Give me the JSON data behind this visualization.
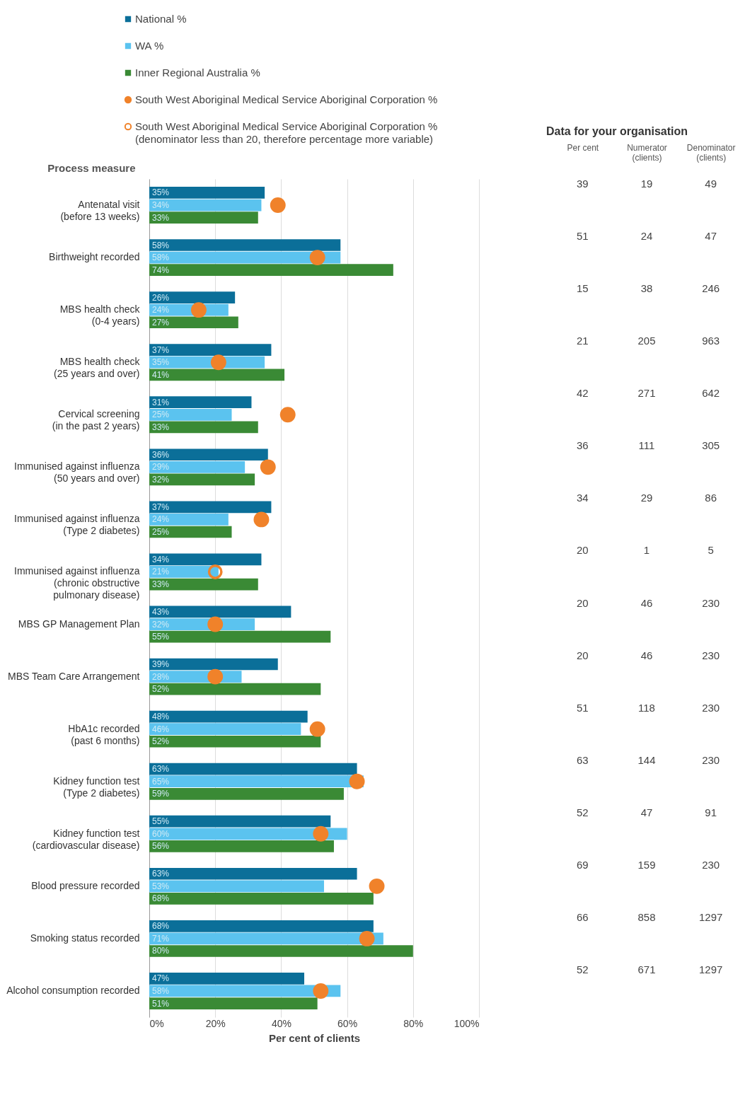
{
  "chart_data": [
    {
      "type": "bar",
      "orientation": "horizontal",
      "ylabel": "Process measure",
      "xlabel": "Per cent of clients",
      "legend": "top",
      "grid": "x",
      "categories": [
        "Antenatal visit\n(before 13 weeks)",
        "Birthweight recorded",
        "MBS health check\n(0-4 years)",
        "MBS health check\n(25 years and over)",
        "Cervical screening\n(in the past 2 years)",
        "Immunised against influenza\n(50 years and over)",
        "Immunised against influenza\n(Type 2 diabetes)",
        "Immunised against influenza\n(chronic obstructive\npulmonary disease)",
        "MBS GP Management Plan",
        "MBS Team Care Arrangement",
        "HbA1c recorded\n(past 6 months)",
        "Kidney function test\n(Type 2 diabetes)",
        "Kidney function test\n(cardiovascular disease)",
        "Blood pressure recorded",
        "Smoking status recorded",
        "Alcohol consumption recorded"
      ],
      "xlim": [
        0,
        100
      ],
      "xticks": [
        {
          "value": 0,
          "label": "0%"
        },
        {
          "value": 20,
          "label": "20%"
        },
        {
          "value": 40,
          "label": "40%"
        },
        {
          "value": 60,
          "label": "60%"
        },
        {
          "value": 80,
          "label": "80%"
        },
        {
          "value": 100,
          "label": "100%"
        }
      ],
      "series": [
        {
          "name": "National %",
          "color": "#0b6f99",
          "values": [
            35,
            58,
            26,
            37,
            31,
            36,
            37,
            34,
            43,
            39,
            48,
            63,
            55,
            63,
            68,
            47
          ],
          "value_labels": [
            "35%",
            "58%",
            "26%",
            "37%",
            "31%",
            "36%",
            "37%",
            "34%",
            "43%",
            "39%",
            "48%",
            "63%",
            "55%",
            "63%",
            "68%",
            "47%"
          ]
        },
        {
          "name": "WA %",
          "color": "#5bc3ef",
          "values": [
            34,
            58,
            24,
            35,
            25,
            29,
            24,
            21,
            32,
            28,
            46,
            65,
            60,
            53,
            71,
            58
          ],
          "value_labels": [
            "34%",
            "58%",
            "24%",
            "35%",
            "25%",
            "29%",
            "24%",
            "21%",
            "32%",
            "28%",
            "46%",
            "65%",
            "60%",
            "53%",
            "71%",
            "58%"
          ]
        },
        {
          "name": "Inner Regional Australia %",
          "color": "#3a8a35",
          "values": [
            33,
            74,
            27,
            41,
            33,
            32,
            25,
            33,
            55,
            52,
            52,
            59,
            56,
            68,
            80,
            51
          ],
          "value_labels": [
            "33%",
            "74%",
            "27%",
            "41%",
            "33%",
            "32%",
            "25%",
            "33%",
            "55%",
            "52%",
            "52%",
            "59%",
            "56%",
            "68%",
            "80%",
            "51%"
          ]
        },
        {
          "name": "South West Aboriginal Medical Service Aboriginal Corporation %",
          "type": "scatter",
          "color": "#f0822a",
          "values": [
            39,
            51,
            15,
            21,
            42,
            36,
            34,
            null,
            20,
            20,
            51,
            63,
            52,
            69,
            66,
            52
          ]
        },
        {
          "name": "South West Aboriginal Medical Service Aboriginal Corporation % (denominator less than 20, therefore percentage more variable)",
          "type": "scatter",
          "color": "#f0822a",
          "values": [
            null,
            null,
            null,
            null,
            null,
            null,
            null,
            20,
            null,
            null,
            null,
            null,
            null,
            null,
            null,
            null
          ]
        }
      ]
    },
    {
      "type": "other",
      "title": "Data for your organisation",
      "data_labels": true,
      "categories": [
        "Per cent",
        "Numerator\n(clients)",
        "Denominator\n(clients)"
      ],
      "cell_labels": [
        [
          "39",
          "19",
          "49"
        ],
        [
          "51",
          "24",
          "47"
        ],
        [
          "15",
          "38",
          "246"
        ],
        [
          "21",
          "205",
          "963"
        ],
        [
          "42",
          "271",
          "642"
        ],
        [
          "36",
          "111",
          "305"
        ],
        [
          "34",
          "29",
          "86"
        ],
        [
          "20",
          "1",
          "5"
        ],
        [
          "20",
          "46",
          "230"
        ],
        [
          "20",
          "46",
          "230"
        ],
        [
          "51",
          "118",
          "230"
        ],
        [
          "63",
          "144",
          "230"
        ],
        [
          "52",
          "47",
          "91"
        ],
        [
          "69",
          "159",
          "230"
        ],
        [
          "66",
          "858",
          "1297"
        ],
        [
          "52",
          "671",
          "1297"
        ]
      ]
    }
  ]
}
